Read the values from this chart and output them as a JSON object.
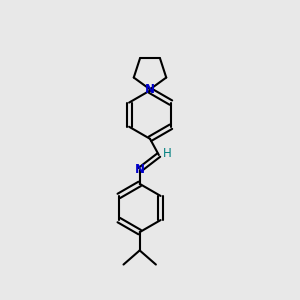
{
  "background_color": "#e8e8e8",
  "bond_color": "#000000",
  "N_color": "#0000cc",
  "H_color": "#008080",
  "line_width": 1.5,
  "figsize": [
    3.0,
    3.0
  ],
  "dpi": 100,
  "xlim": [
    0,
    10
  ],
  "ylim": [
    0,
    10
  ]
}
